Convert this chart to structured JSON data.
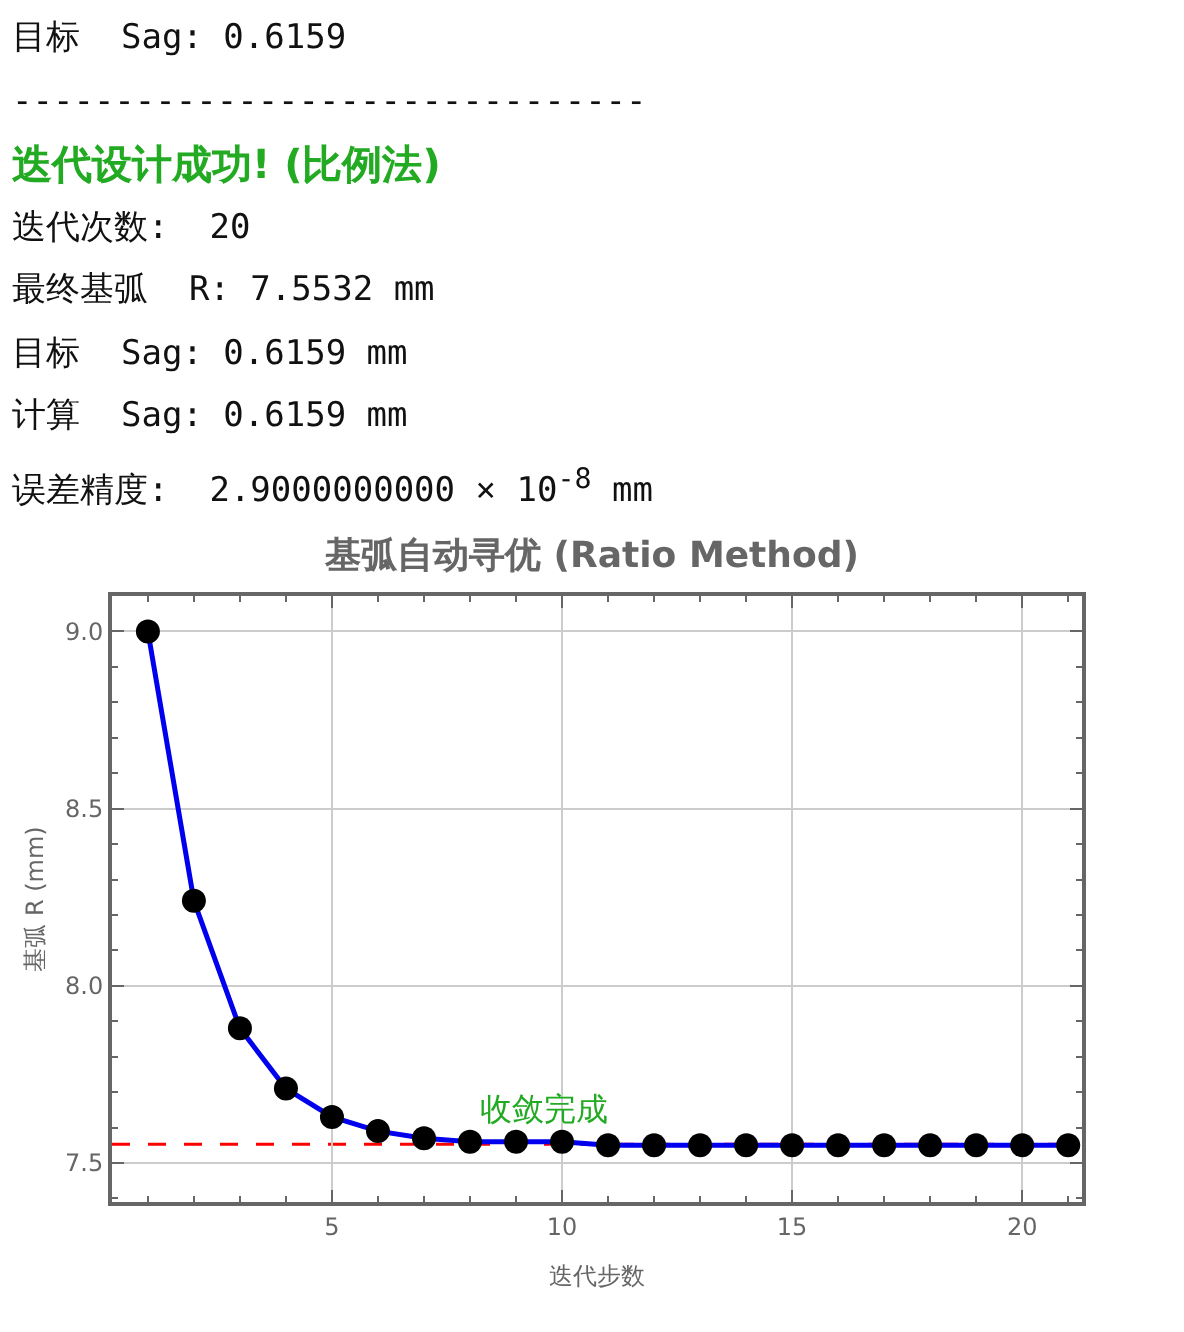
{
  "chart_data": {
    "type": "line",
    "title": "基弧自动寻优 (Ratio Method)",
    "xlabel": "迭代步数",
    "ylabel": "基弧 R (mm)",
    "annotations": [
      "目标  Sag: 0.6159",
      "-------------------------------",
      "迭代设计成功! (比例法)",
      "迭代次数:  20",
      "最终基弧  R: 7.5532 mm",
      "目标  Sag: 0.6159 mm",
      "计算  Sag: 0.6159 mm",
      "误差精度:  2.9000000000 × 10$^{-8}$ mm"
    ],
    "x": [
      1,
      2,
      3,
      4,
      5,
      6,
      7,
      8,
      9,
      10,
      11,
      12,
      13,
      14,
      15,
      16,
      17,
      18,
      19,
      20,
      21
    ],
    "series": [
      {
        "color": "#0000ee",
        "values": [
          9.0,
          8.24,
          7.88,
          7.71,
          7.63,
          7.59,
          7.57,
          7.56,
          7.56,
          7.56,
          7.55,
          7.55,
          7.55,
          7.55,
          7.55,
          7.55,
          7.55,
          7.55,
          7.55,
          7.55,
          7.55
        ]
      }
    ],
    "xlim": [
      0.22,
      21.3
    ],
    "xticks": [
      5,
      10,
      15,
      20
    ],
    "ylim": [
      7.39,
      9.1
    ],
    "yticks": [
      7.5,
      {
        "value": 8,
        "label": "8.0"
      },
      8.5,
      {
        "value": 9,
        "label": "9.0"
      }
    ],
    "ref_lines": [
      {
        "axis": "y",
        "value": 7.5532,
        "color": "#ff0000",
        "line_style": "dashed",
        "label": "收敛完成"
      }
    ],
    "grid": true,
    "marker": "circle",
    "line_style": "solid"
  }
}
